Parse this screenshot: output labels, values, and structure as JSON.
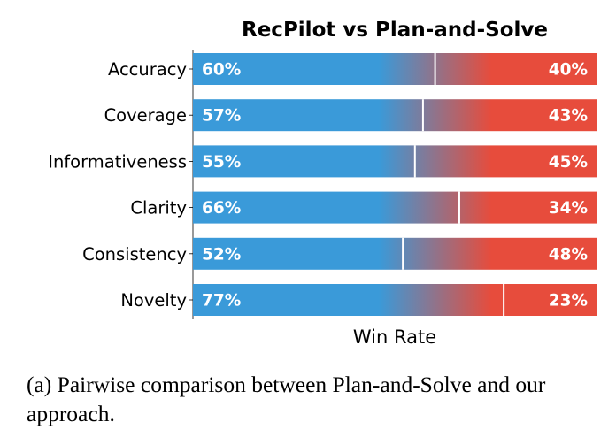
{
  "caption": "(a) Pairwise comparison between Plan-and-Solve and our approach.",
  "colors": {
    "left": "#3a9ad9",
    "right": "#e74c3c",
    "divider": "#ffffff"
  },
  "chart_data": {
    "type": "bar",
    "orientation": "horizontal-stacked",
    "title": "RecPilot vs Plan-and-Solve",
    "xlabel": "Win Rate",
    "ylabel": "",
    "xlim": [
      0,
      100
    ],
    "categories": [
      "Accuracy",
      "Coverage",
      "Informativeness",
      "Clarity",
      "Consistency",
      "Novelty"
    ],
    "series": [
      {
        "values": [
          60,
          57,
          55,
          66,
          52,
          77
        ]
      },
      {
        "values": [
          40,
          43,
          45,
          34,
          48,
          23
        ]
      }
    ],
    "left_labels": [
      "60%",
      "57%",
      "55%",
      "66%",
      "52%",
      "77%"
    ],
    "right_labels": [
      "40%",
      "43%",
      "45%",
      "34%",
      "48%",
      "23%"
    ],
    "grid": false,
    "legend": "none"
  }
}
